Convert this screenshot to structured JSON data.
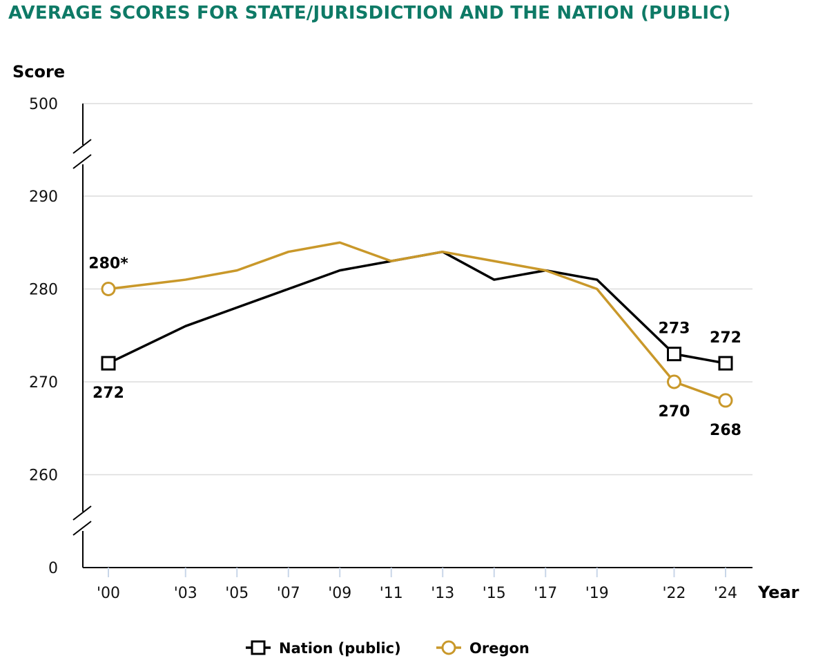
{
  "chart_data": {
    "type": "line",
    "title": "AVERAGE SCORES FOR STATE/JURISDICTION AND THE NATION (PUBLIC)",
    "ylabel": "Score",
    "xlabel": "Year",
    "x": [
      "'00",
      "'03",
      "'05",
      "'07",
      "'09",
      "'11",
      "'13",
      "'15",
      "'17",
      "'19",
      "'22",
      "'24"
    ],
    "x_years": [
      2000,
      2003,
      2005,
      2007,
      2009,
      2011,
      2013,
      2015,
      2017,
      2019,
      2022,
      2024
    ],
    "y_ticks": [
      "500",
      "290",
      "280",
      "270",
      "260",
      "0"
    ],
    "ylim": [
      255,
      295
    ],
    "axis_breaks": "y-axis broken between 290 and 500 and between 260 and 0",
    "grid": "horizontal",
    "legend_position": "bottom-center",
    "series": [
      {
        "name": "Nation (public)",
        "color": "#000000",
        "marker": "square",
        "values": [
          272,
          276,
          278,
          280,
          282,
          283,
          284,
          281,
          282,
          281,
          273,
          272
        ]
      },
      {
        "name": "Oregon",
        "color": "#c9982a",
        "marker": "circle",
        "values": [
          280,
          281,
          282,
          284,
          285,
          283,
          284,
          283,
          282,
          280,
          270,
          268
        ]
      }
    ],
    "annotations": [
      {
        "series": 0,
        "index": 0,
        "text": "272",
        "position": "below"
      },
      {
        "series": 1,
        "index": 0,
        "text": "280*",
        "position": "above"
      },
      {
        "series": 0,
        "index": 10,
        "text": "273",
        "position": "above"
      },
      {
        "series": 1,
        "index": 10,
        "text": "270",
        "position": "below"
      },
      {
        "series": 0,
        "index": 11,
        "text": "272",
        "position": "above"
      },
      {
        "series": 1,
        "index": 11,
        "text": "268",
        "position": "below"
      }
    ]
  }
}
